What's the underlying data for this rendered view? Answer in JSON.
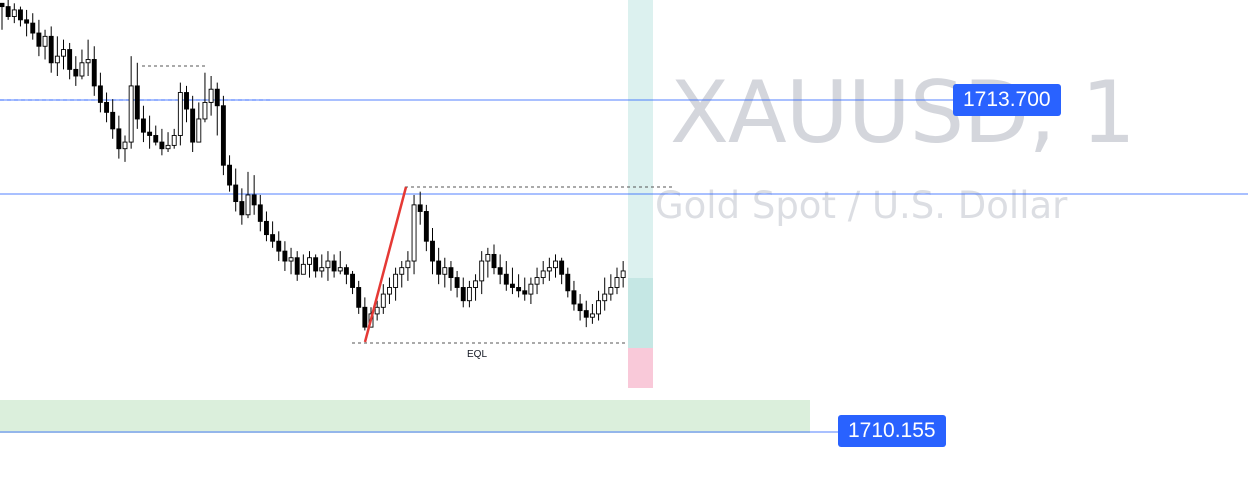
{
  "watermark": {
    "symbol": "XAUUSD, 1",
    "description": "Gold Spot / U.S. Dollar"
  },
  "price_tags": {
    "upper": "1713.700",
    "lower": "1710.155"
  },
  "annotations": {
    "equal_lows_label": "EQL"
  },
  "colors": {
    "horizontal_line": "#2962ff",
    "candle": "#000000",
    "trend_line": "#e53935",
    "tp_zone": "#b2dfdb",
    "sl_zone": "#f8bbd0",
    "demand_zone": "#c8e6c9"
  },
  "chart_data": {
    "type": "candlestick",
    "symbol": "XAUUSD",
    "timeframe": "1",
    "levels": [
      1713.7,
      1710.155
    ],
    "ylim": [
      1709.4,
      1715.15
    ],
    "candles_hlc": [
      [
        1715.1,
        1714.7,
        1715.05
      ],
      [
        1715.15,
        1714.85,
        1714.9
      ],
      [
        1715.1,
        1714.8,
        1715.0
      ],
      [
        1715.05,
        1714.75,
        1714.85
      ],
      [
        1715.0,
        1714.6,
        1714.8
      ],
      [
        1714.95,
        1714.55,
        1714.65
      ],
      [
        1714.85,
        1714.3,
        1714.45
      ],
      [
        1714.7,
        1714.25,
        1714.6
      ],
      [
        1714.75,
        1714.05,
        1714.2
      ],
      [
        1714.6,
        1714.0,
        1714.3
      ],
      [
        1714.55,
        1714.1,
        1714.4
      ],
      [
        1714.5,
        1713.95,
        1714.1
      ],
      [
        1714.3,
        1713.85,
        1714.0
      ],
      [
        1714.4,
        1713.95,
        1714.2
      ],
      [
        1714.55,
        1714.0,
        1714.25
      ],
      [
        1714.45,
        1713.7,
        1713.85
      ],
      [
        1714.05,
        1713.45,
        1713.6
      ],
      [
        1713.75,
        1713.3,
        1713.45
      ],
      [
        1713.65,
        1713.05,
        1713.2
      ],
      [
        1713.4,
        1712.75,
        1712.9
      ],
      [
        1713.1,
        1712.7,
        1713.0
      ],
      [
        1714.3,
        1712.9,
        1713.85
      ],
      [
        1714.2,
        1713.2,
        1713.35
      ],
      [
        1713.55,
        1713.0,
        1713.15
      ],
      [
        1713.4,
        1712.9,
        1713.1
      ],
      [
        1713.25,
        1712.95,
        1713.0
      ],
      [
        1713.2,
        1712.8,
        1712.9
      ],
      [
        1713.15,
        1712.85,
        1712.95
      ],
      [
        1713.2,
        1712.9,
        1713.1
      ],
      [
        1713.9,
        1712.95,
        1713.75
      ],
      [
        1713.85,
        1713.3,
        1713.5
      ],
      [
        1713.7,
        1712.85,
        1713.0
      ],
      [
        1713.6,
        1713.0,
        1713.35
      ],
      [
        1714.05,
        1713.3,
        1713.6
      ],
      [
        1714.0,
        1713.4,
        1713.8
      ],
      [
        1713.9,
        1713.1,
        1713.55
      ],
      [
        1713.7,
        1712.5,
        1712.65
      ],
      [
        1712.8,
        1712.25,
        1712.35
      ],
      [
        1712.6,
        1711.95,
        1712.1
      ],
      [
        1712.3,
        1711.75,
        1711.9
      ],
      [
        1712.55,
        1711.85,
        1712.2
      ],
      [
        1712.5,
        1711.9,
        1712.05
      ],
      [
        1712.2,
        1711.65,
        1711.8
      ],
      [
        1711.95,
        1711.5,
        1711.6
      ],
      [
        1711.8,
        1711.4,
        1711.5
      ],
      [
        1711.65,
        1711.2,
        1711.35
      ],
      [
        1711.5,
        1711.05,
        1711.2
      ],
      [
        1711.4,
        1711.0,
        1711.25
      ],
      [
        1711.35,
        1710.9,
        1711.0
      ],
      [
        1711.3,
        1711.0,
        1711.15
      ],
      [
        1711.35,
        1710.95,
        1711.25
      ],
      [
        1711.3,
        1710.95,
        1711.05
      ],
      [
        1711.3,
        1710.95,
        1711.1
      ],
      [
        1711.35,
        1710.9,
        1711.2
      ],
      [
        1711.3,
        1710.95,
        1711.05
      ],
      [
        1711.35,
        1711.0,
        1711.1
      ],
      [
        1711.15,
        1710.85,
        1711.0
      ],
      [
        1711.05,
        1710.7,
        1710.8
      ],
      [
        1710.9,
        1710.4,
        1710.5
      ],
      [
        1710.65,
        1710.15,
        1710.2
      ],
      [
        1710.5,
        1710.2,
        1710.4
      ],
      [
        1710.6,
        1710.3,
        1710.5
      ],
      [
        1710.85,
        1710.4,
        1710.7
      ],
      [
        1710.95,
        1710.55,
        1710.8
      ],
      [
        1711.1,
        1710.6,
        1711.0
      ],
      [
        1711.2,
        1710.8,
        1711.1
      ],
      [
        1711.35,
        1710.9,
        1711.2
      ],
      [
        1712.2,
        1711.0,
        1712.05
      ],
      [
        1712.25,
        1711.75,
        1711.95
      ],
      [
        1712.05,
        1711.35,
        1711.5
      ],
      [
        1711.7,
        1711.0,
        1711.2
      ],
      [
        1711.4,
        1710.85,
        1711.0
      ],
      [
        1711.25,
        1710.8,
        1711.1
      ],
      [
        1711.2,
        1710.75,
        1710.95
      ],
      [
        1711.05,
        1710.65,
        1710.8
      ],
      [
        1710.95,
        1710.5,
        1710.6
      ],
      [
        1710.9,
        1710.5,
        1710.8
      ],
      [
        1711.0,
        1710.6,
        1710.9
      ],
      [
        1711.35,
        1710.7,
        1711.2
      ],
      [
        1711.4,
        1710.95,
        1711.3
      ],
      [
        1711.45,
        1711.0,
        1711.1
      ],
      [
        1711.3,
        1710.85,
        1711.0
      ],
      [
        1711.2,
        1710.75,
        1710.85
      ],
      [
        1711.1,
        1710.7,
        1710.8
      ],
      [
        1711.0,
        1710.65,
        1710.75
      ],
      [
        1710.95,
        1710.6,
        1710.7
      ],
      [
        1710.95,
        1710.55,
        1710.85
      ],
      [
        1711.1,
        1710.7,
        1710.95
      ],
      [
        1711.2,
        1710.85,
        1711.05
      ],
      [
        1711.25,
        1710.9,
        1711.1
      ],
      [
        1711.3,
        1710.95,
        1711.2
      ],
      [
        1711.25,
        1710.85,
        1711.0
      ],
      [
        1711.1,
        1710.65,
        1710.75
      ],
      [
        1710.9,
        1710.45,
        1710.55
      ],
      [
        1710.7,
        1710.3,
        1710.45
      ],
      [
        1710.6,
        1710.2,
        1710.35
      ],
      [
        1710.55,
        1710.25,
        1710.4
      ],
      [
        1710.75,
        1710.3,
        1710.6
      ],
      [
        1710.95,
        1710.45,
        1710.7
      ],
      [
        1711.0,
        1710.6,
        1710.8
      ],
      [
        1711.1,
        1710.7,
        1710.95
      ],
      [
        1711.2,
        1710.8,
        1711.05
      ]
    ],
    "annotations": [
      "EQL"
    ]
  }
}
